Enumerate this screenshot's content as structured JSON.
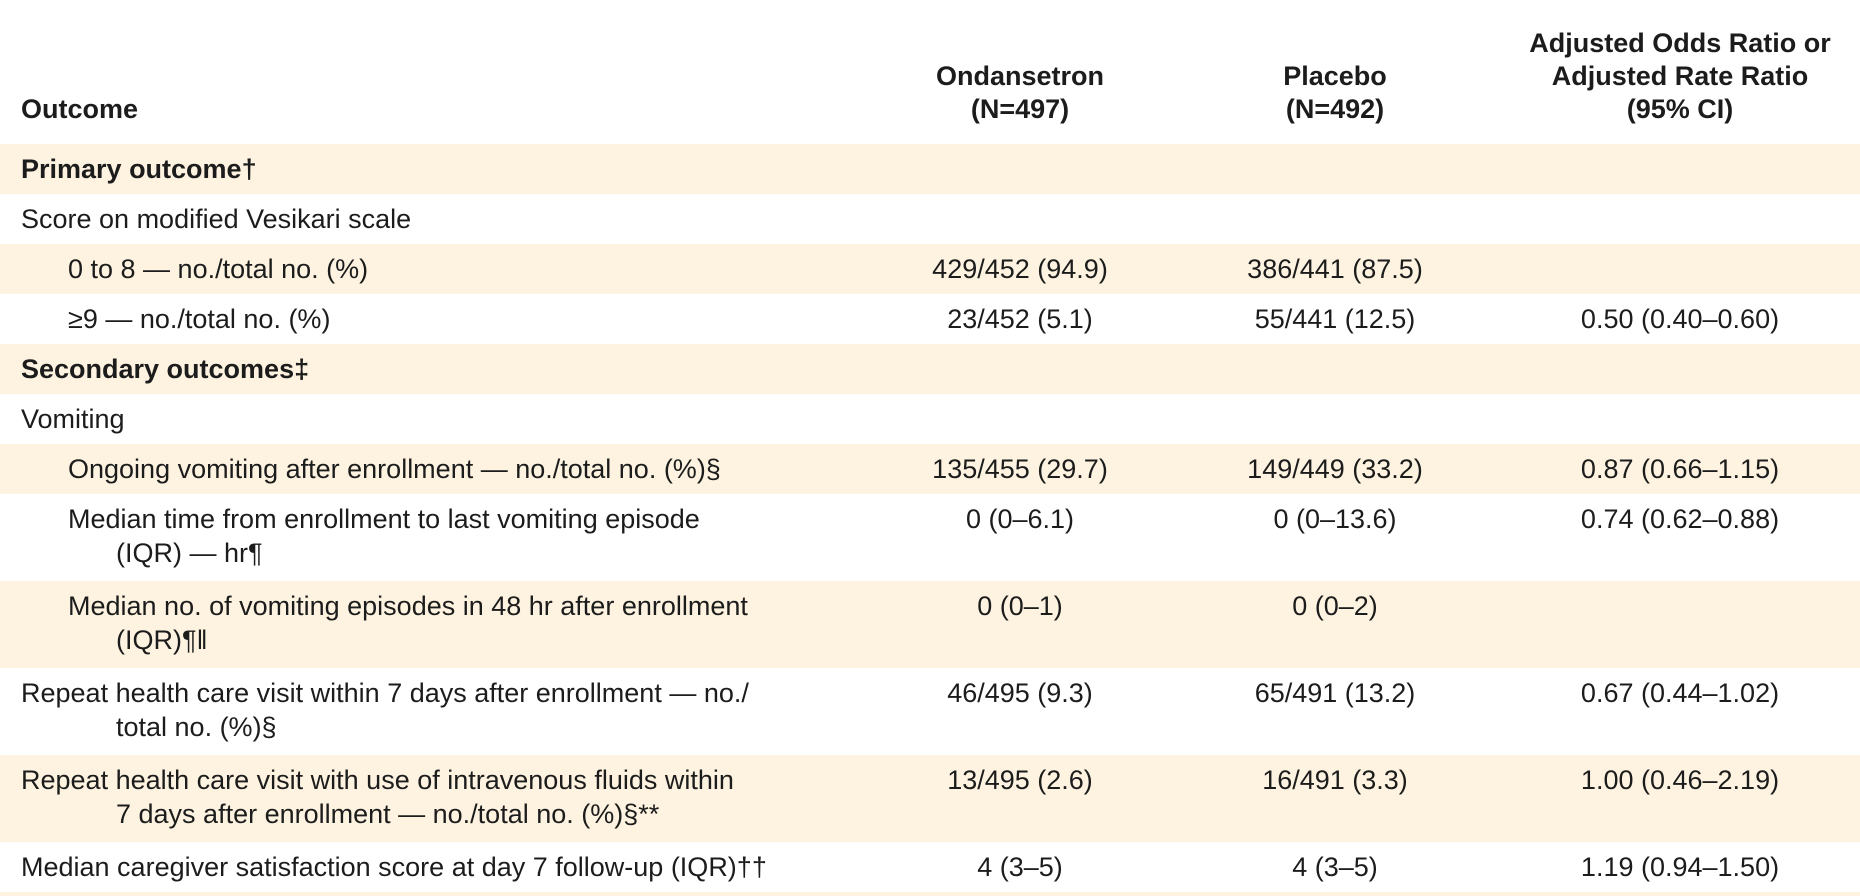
{
  "table": {
    "colors": {
      "stripe": "#fdf3e0",
      "text": "#1c1c1c",
      "background": "#ffffff"
    },
    "columns": [
      {
        "key": "outcome",
        "label_lines": [
          "Outcome"
        ]
      },
      {
        "key": "ondansetron",
        "label_lines": [
          "Ondansetron",
          "(N=497)"
        ]
      },
      {
        "key": "placebo",
        "label_lines": [
          "Placebo",
          "(N=492)"
        ]
      },
      {
        "key": "aor",
        "label_lines": [
          "Adjusted Odds Ratio or",
          "Adjusted Rate Ratio",
          "(95% CI)"
        ]
      }
    ],
    "rows": [
      {
        "style": "section",
        "indent": 0,
        "lines": [
          "Primary outcome†"
        ],
        "ondansetron": "",
        "placebo": "",
        "aor": ""
      },
      {
        "style": "plain",
        "indent": 0,
        "lines": [
          "Score on modified Vesikari scale"
        ],
        "ondansetron": "",
        "placebo": "",
        "aor": ""
      },
      {
        "style": "plain",
        "indent": 1,
        "lines": [
          "0 to 8 — no./total no. (%)"
        ],
        "ondansetron": "429/452 (94.9)",
        "placebo": "386/441 (87.5)",
        "aor": ""
      },
      {
        "style": "plain",
        "indent": 1,
        "lines": [
          "≥9 — no./total no. (%)"
        ],
        "ondansetron": "23/452 (5.1)",
        "placebo": "55/441 (12.5)",
        "aor": "0.50 (0.40–0.60)"
      },
      {
        "style": "section",
        "indent": 0,
        "lines": [
          "Secondary outcomes‡"
        ],
        "ondansetron": "",
        "placebo": "",
        "aor": ""
      },
      {
        "style": "plain",
        "indent": 0,
        "lines": [
          "Vomiting"
        ],
        "ondansetron": "",
        "placebo": "",
        "aor": ""
      },
      {
        "style": "plain",
        "indent": 1,
        "lines": [
          "Ongoing vomiting after enrollment — no./total no. (%)§"
        ],
        "ondansetron": "135/455 (29.7)",
        "placebo": "149/449 (33.2)",
        "aor": "0.87 (0.66–1.15)"
      },
      {
        "style": "plain",
        "indent": 1,
        "lines": [
          "Median time from enrollment to last vomiting episode",
          "(IQR) — hr¶"
        ],
        "ondansetron": "0 (0–6.1)",
        "placebo": "0 (0–13.6)",
        "aor": "0.74 (0.62–0.88)"
      },
      {
        "style": "plain",
        "indent": 1,
        "lines": [
          "Median no. of vomiting episodes in 48 hr after enrollment",
          "(IQR)¶‖"
        ],
        "ondansetron": "0 (0–1)",
        "placebo": "0 (0–2)",
        "aor": ""
      },
      {
        "style": "plain",
        "indent": 0,
        "lines": [
          "Repeat health care visit within 7 days after enrollment — no./",
          "total no. (%)§"
        ],
        "ondansetron": "46/495 (9.3)",
        "placebo": "65/491 (13.2)",
        "aor": "0.67 (0.44–1.02)"
      },
      {
        "style": "plain",
        "indent": 0,
        "lines": [
          "Repeat health care visit with use of intravenous fluids within",
          "7 days after enrollment — no./total no. (%)§**"
        ],
        "ondansetron": "13/495 (2.6)",
        "placebo": "16/491 (3.3)",
        "aor": "1.00 (0.46–2.19)"
      },
      {
        "style": "plain",
        "indent": 0,
        "lines": [
          "Median caregiver satisfaction score at day 7 follow-up (IQR)††"
        ],
        "ondansetron": "4 (3–5)",
        "placebo": "4 (3–5)",
        "aor": "1.19 (0.94–1.50)"
      },
      {
        "style": "partial",
        "indent": 0,
        "lines": [],
        "ondansetron": "",
        "placebo": "",
        "aor": ""
      }
    ]
  }
}
